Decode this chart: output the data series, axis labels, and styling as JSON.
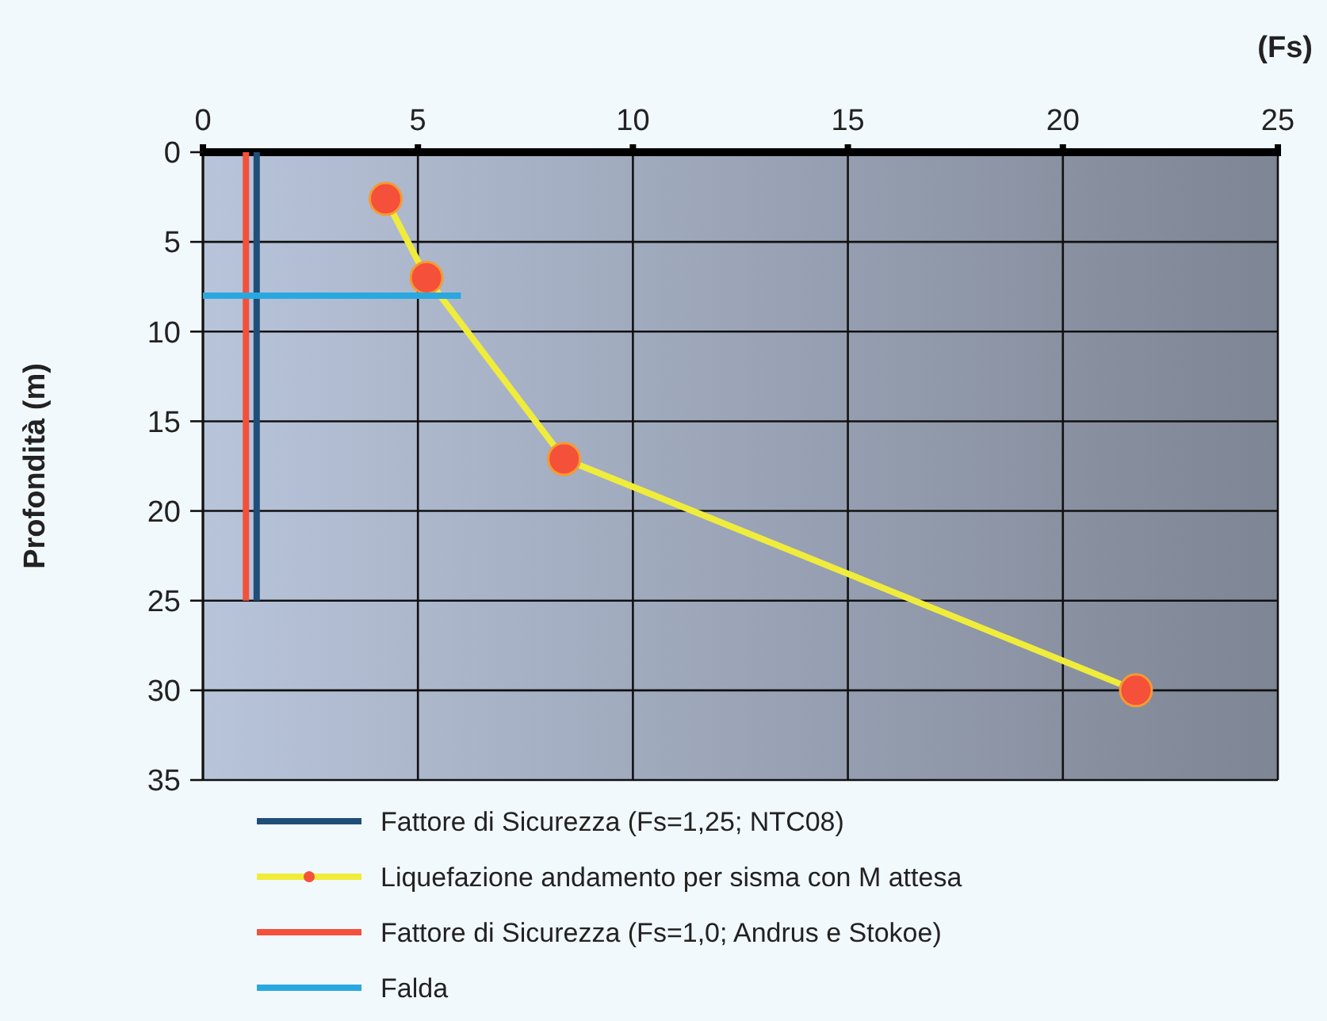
{
  "chart_data": {
    "type": "line",
    "xlabel": "(Fs)",
    "ylabel": "Profondità (m)",
    "xlim": [
      0,
      25
    ],
    "xticks": [
      0,
      5,
      10,
      15,
      20,
      25
    ],
    "ylim": [
      35,
      0
    ],
    "yticks": [
      0,
      5,
      10,
      15,
      20,
      25,
      30,
      35
    ],
    "grid": true,
    "legend": "bottom",
    "series": [
      {
        "name": "Fattore di Sicurezza (Fs=1,25; NTC08)",
        "color": "#1f4e79",
        "x": [
          1.25,
          1.25
        ],
        "values": [
          0,
          25
        ],
        "marker": "none"
      },
      {
        "name": "Liquefazione andamento per sisma con M attesa",
        "color": "#f0ec3c",
        "x": [
          4.25,
          5.2,
          8.4,
          21.7
        ],
        "values": [
          2.6,
          7,
          17.1,
          30
        ],
        "marker": "circle"
      },
      {
        "name": "Fattore di Sicurezza (Fs=1,0; Andrus e Stokoe)",
        "color": "#f4503a",
        "x": [
          1,
          1
        ],
        "values": [
          0,
          25
        ],
        "marker": "none"
      },
      {
        "name": "Falda",
        "color": "#29a8e0",
        "x": [
          0,
          6
        ],
        "values": [
          8,
          8
        ],
        "marker": "none"
      }
    ]
  }
}
